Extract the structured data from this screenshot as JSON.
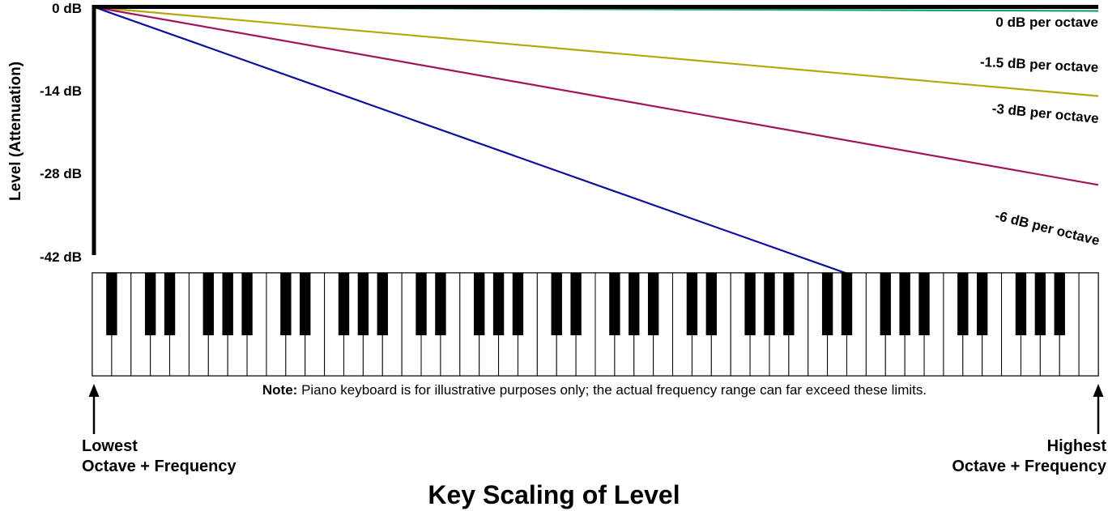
{
  "chart_data": {
    "type": "line",
    "title": "Key Scaling of Level",
    "ylabel": "Level (Attenuation)",
    "y_ticks": [
      "0 dB",
      "-14 dB",
      "-28 dB",
      "-42 dB"
    ],
    "ylim": [
      -42,
      0
    ],
    "x_octaves": 10,
    "series": [
      {
        "name": "0 dB per octave",
        "slope_db_per_octave": 0,
        "color": "#1aa36a"
      },
      {
        "name": "-1.5 dB per octave",
        "slope_db_per_octave": -1.5,
        "color": "#b5a80f"
      },
      {
        "name": "-3 dB per octave",
        "slope_db_per_octave": -3,
        "color": "#a3155a"
      },
      {
        "name": "-6 dB per octave",
        "slope_db_per_octave": -6,
        "color": "#10109e"
      }
    ]
  },
  "keyboard": {
    "white_keys": 52,
    "note_bold": "Note:",
    "note_text": " Piano keyboard is for illustrative purposes only; the actual frequency range can far exceed these limits."
  },
  "edges": {
    "lowest_line1": "Lowest",
    "lowest_line2": "Octave + Frequency",
    "highest_line1": "Highest",
    "highest_line2": "Octave + Frequency"
  },
  "colors": {
    "axis": "#000000",
    "key_black": "#000000",
    "key_white": "#ffffff"
  }
}
